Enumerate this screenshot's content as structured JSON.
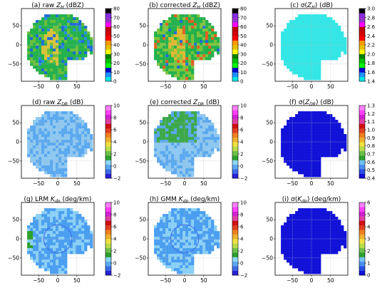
{
  "figure": {
    "x_ticks": [
      -50,
      0,
      50
    ],
    "y_ticks": [
      50,
      0,
      -50
    ],
    "xlim": [
      -95,
      95
    ],
    "ylim": [
      -95,
      95
    ]
  },
  "chart_data": [
    {
      "id": "a",
      "type": "heatmap",
      "title": "(a) raw Z_H (dBZ)",
      "title_parts": [
        "(a) raw ",
        "Z",
        "H",
        " (dBZ)"
      ],
      "field": "raw reflectivity",
      "colorbar": {
        "ticks": [
          "0",
          "10",
          "20",
          "30",
          "40",
          "50",
          "60",
          "70",
          "80"
        ],
        "range": [
          0,
          80
        ],
        "colors": [
          "#00e5e5",
          "#1e90ff",
          "#0000cd",
          "#00ff00",
          "#00c000",
          "#008000",
          "#ffff00",
          "#e6c000",
          "#ff9900",
          "#ff0000",
          "#d40000",
          "#c00000",
          "#ff00ff",
          "#9932cc",
          "#8a2be2",
          "#000000"
        ]
      },
      "dominant_colors": [
        "#22b14c",
        "#6abf3a",
        "#d9c23a",
        "#1f6bd6",
        "#2a8fe0"
      ]
    },
    {
      "id": "b",
      "type": "heatmap",
      "title": "(b) corrected Z_H (dBZ)",
      "title_parts": [
        "(b) corrected ",
        "Z",
        "H",
        " (dBZ)"
      ],
      "field": "corrected reflectivity",
      "colorbar": {
        "ticks": [
          "0",
          "10",
          "20",
          "30",
          "40",
          "50",
          "60",
          "70",
          "80"
        ],
        "range": [
          0,
          80
        ],
        "colors": [
          "#00e5e5",
          "#1e90ff",
          "#0000cd",
          "#00ff00",
          "#00c000",
          "#008000",
          "#ffff00",
          "#e6c000",
          "#ff9900",
          "#ff0000",
          "#d40000",
          "#c00000",
          "#ff00ff",
          "#9932cc",
          "#8a2be2",
          "#000000"
        ]
      },
      "dominant_colors": [
        "#22b14c",
        "#7cc43a",
        "#e0b830",
        "#e06020",
        "#1f6bd6"
      ]
    },
    {
      "id": "c",
      "type": "heatmap",
      "title": "(c) σ(Z_H) (dB)",
      "title_parts": [
        "(c) σ(",
        "Z",
        "H",
        ") (dB)"
      ],
      "field": "reflectivity standard deviation",
      "colorbar": {
        "ticks": [
          "1.4",
          "1.6",
          "1.8",
          "2.0",
          "2.2",
          "2.4",
          "2.6",
          "2.8",
          "3.0"
        ],
        "range": [
          1.4,
          3.0
        ],
        "colors": [
          "#00e5e5",
          "#1e90ff",
          "#0000cd",
          "#00ff00",
          "#00c000",
          "#008000",
          "#ffff00",
          "#e6c000",
          "#ff9900",
          "#ff0000",
          "#d40000",
          "#c00000",
          "#ff00ff",
          "#9932cc",
          "#8a2be2",
          "#000000"
        ]
      },
      "dominant_colors": [
        "#33e6e6"
      ]
    },
    {
      "id": "d",
      "type": "heatmap",
      "title": "(d) raw Z_DR (dB)",
      "title_parts": [
        "(d) raw ",
        "Z",
        "DR",
        " (dB)"
      ],
      "field": "raw differential reflectivity",
      "colorbar": {
        "ticks": [
          "−2",
          "0",
          "2",
          "4",
          "6",
          "8",
          "10"
        ],
        "range": [
          -2,
          10
        ],
        "colors": [
          "#2a1fd9",
          "#3c6ae6",
          "#5aa8f0",
          "#8ad6f7",
          "#2ca02c",
          "#6cc04a",
          "#b8dc4a",
          "#f0e040",
          "#f0b030",
          "#f08020",
          "#e04020",
          "#d01010",
          "#e040a0",
          "#d020d0",
          "#ff40ff",
          "#ff80ff"
        ]
      },
      "dominant_colors": [
        "#8ec8f0",
        "#5aa8f0",
        "#3c6ae6"
      ]
    },
    {
      "id": "e",
      "type": "heatmap",
      "title": "(e) corrected Z_DR (dB)",
      "title_parts": [
        "(e) corrected ",
        "Z",
        "DR",
        " (dB)"
      ],
      "field": "corrected differential reflectivity",
      "colorbar": {
        "ticks": [
          "−2",
          "0",
          "2",
          "4",
          "6",
          "8",
          "10"
        ],
        "range": [
          -2,
          10
        ],
        "colors": [
          "#2a1fd9",
          "#3c6ae6",
          "#5aa8f0",
          "#8ad6f7",
          "#2ca02c",
          "#6cc04a",
          "#b8dc4a",
          "#f0e040",
          "#f0b030",
          "#f08020",
          "#e04020",
          "#d01010",
          "#e040a0",
          "#d020d0",
          "#ff40ff",
          "#ff80ff"
        ]
      },
      "dominant_colors": [
        "#3aa84a",
        "#8ec8f0",
        "#5aa8f0"
      ]
    },
    {
      "id": "f",
      "type": "heatmap",
      "title": "(f) σ(Z_DR) (dB)",
      "title_parts": [
        "(f) σ(",
        "Z",
        "DR",
        ") (dB)"
      ],
      "field": "differential reflectivity standard deviation",
      "colorbar": {
        "ticks": [
          "0.4",
          "0.5",
          "0.6",
          "0.7",
          "0.8",
          "0.9",
          "1.0",
          "1.1",
          "1.2",
          "1.3"
        ],
        "range": [
          0.4,
          1.3
        ],
        "colors": [
          "#1010d8",
          "#2a4fe6",
          "#4a8ef0",
          "#74c2f6",
          "#2ca02c",
          "#6cc04a",
          "#b8dc4a",
          "#f0e040",
          "#f0b030",
          "#f08020",
          "#e04020",
          "#d01010",
          "#e040a0",
          "#d020d0",
          "#ff40ff",
          "#ff80ff"
        ]
      },
      "dominant_colors": [
        "#1010d8"
      ]
    },
    {
      "id": "g",
      "type": "heatmap",
      "title": "(g) LRM K_dp (deg/km)",
      "title_parts": [
        "(g) LRM ",
        "K",
        "dp",
        " (deg/km)"
      ],
      "field": "specific differential phase, LRM",
      "colorbar": {
        "ticks": [
          "−2",
          "0",
          "2",
          "4",
          "6",
          "8",
          "10"
        ],
        "range": [
          -2,
          10
        ],
        "colors": [
          "#2a1fd9",
          "#3c6ae6",
          "#5aa8f0",
          "#8ad6f7",
          "#2ca02c",
          "#6cc04a",
          "#b8dc4a",
          "#f0e040",
          "#f0b030",
          "#f08020",
          "#e04020",
          "#d01010",
          "#e040a0",
          "#d020d0",
          "#ff40ff",
          "#ff80ff"
        ]
      },
      "dominant_colors": [
        "#4a9ef0",
        "#8ad0f6",
        "#2ca02c"
      ]
    },
    {
      "id": "h",
      "type": "heatmap",
      "title": "(h) GMM K_dp (deg/km)",
      "title_parts": [
        "(h) GMM ",
        "K",
        "dp",
        " (deg/km)"
      ],
      "field": "specific differential phase, GMM",
      "colorbar": {
        "ticks": [
          "−2",
          "0",
          "2",
          "4",
          "6",
          "8",
          "10"
        ],
        "range": [
          -2,
          10
        ],
        "colors": [
          "#2a1fd9",
          "#3c6ae6",
          "#5aa8f0",
          "#8ad6f7",
          "#2ca02c",
          "#6cc04a",
          "#b8dc4a",
          "#f0e040",
          "#f0b030",
          "#f08020",
          "#e04020",
          "#d01010",
          "#e040a0",
          "#d020d0",
          "#ff40ff",
          "#ff80ff"
        ]
      },
      "dominant_colors": [
        "#4a9ef0",
        "#8ad0f6"
      ]
    },
    {
      "id": "i",
      "type": "heatmap",
      "title": "(i) σ(K_dp) (deg/km)",
      "title_parts": [
        "(i) σ(",
        "K",
        "dp",
        ") (deg/km)"
      ],
      "field": "specific differential phase standard deviation",
      "colorbar": {
        "ticks": [
          "0",
          "1",
          "2",
          "3",
          "4",
          "5",
          "6"
        ],
        "range": [
          0,
          6
        ],
        "colors": [
          "#1010d8",
          "#2a4fe6",
          "#4a8ef0",
          "#74c2f6",
          "#2ca02c",
          "#6cc04a",
          "#b8dc4a",
          "#f0e040",
          "#f0b030",
          "#f08020",
          "#e04020",
          "#d01010",
          "#e040a0",
          "#d020d0",
          "#ff40ff",
          "#ff80ff"
        ]
      },
      "dominant_colors": [
        "#1010d8"
      ]
    }
  ]
}
